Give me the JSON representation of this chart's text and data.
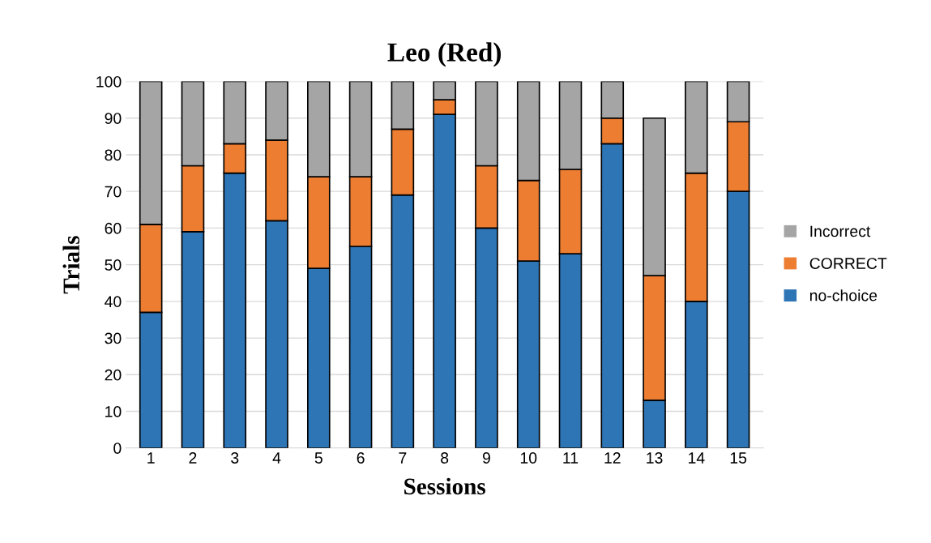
{
  "chart_data": {
    "type": "bar",
    "title": "Leo (Red)",
    "xlabel": "Sessions",
    "ylabel": "Trials",
    "categories": [
      "1",
      "2",
      "3",
      "4",
      "5",
      "6",
      "7",
      "8",
      "9",
      "10",
      "11",
      "12",
      "13",
      "14",
      "15"
    ],
    "stacked": true,
    "ylim": [
      0,
      100
    ],
    "yticks": [
      0,
      10,
      20,
      30,
      40,
      50,
      60,
      70,
      80,
      90,
      100
    ],
    "grid": "y",
    "legend": "right",
    "series": [
      {
        "name": "no-choice",
        "color": "#2e75b6",
        "values": [
          37,
          59,
          75,
          62,
          49,
          55,
          69,
          91,
          60,
          51,
          53,
          83,
          13,
          40,
          70
        ]
      },
      {
        "name": "CORRECT",
        "color": "#ed7d31",
        "values": [
          24,
          18,
          8,
          22,
          25,
          19,
          18,
          4,
          17,
          22,
          23,
          7,
          34,
          35,
          19
        ]
      },
      {
        "name": "Incorrect",
        "color": "#a5a5a5",
        "values": [
          39,
          23,
          17,
          16,
          26,
          26,
          13,
          5,
          23,
          27,
          24,
          10,
          43,
          25,
          11
        ]
      }
    ]
  }
}
